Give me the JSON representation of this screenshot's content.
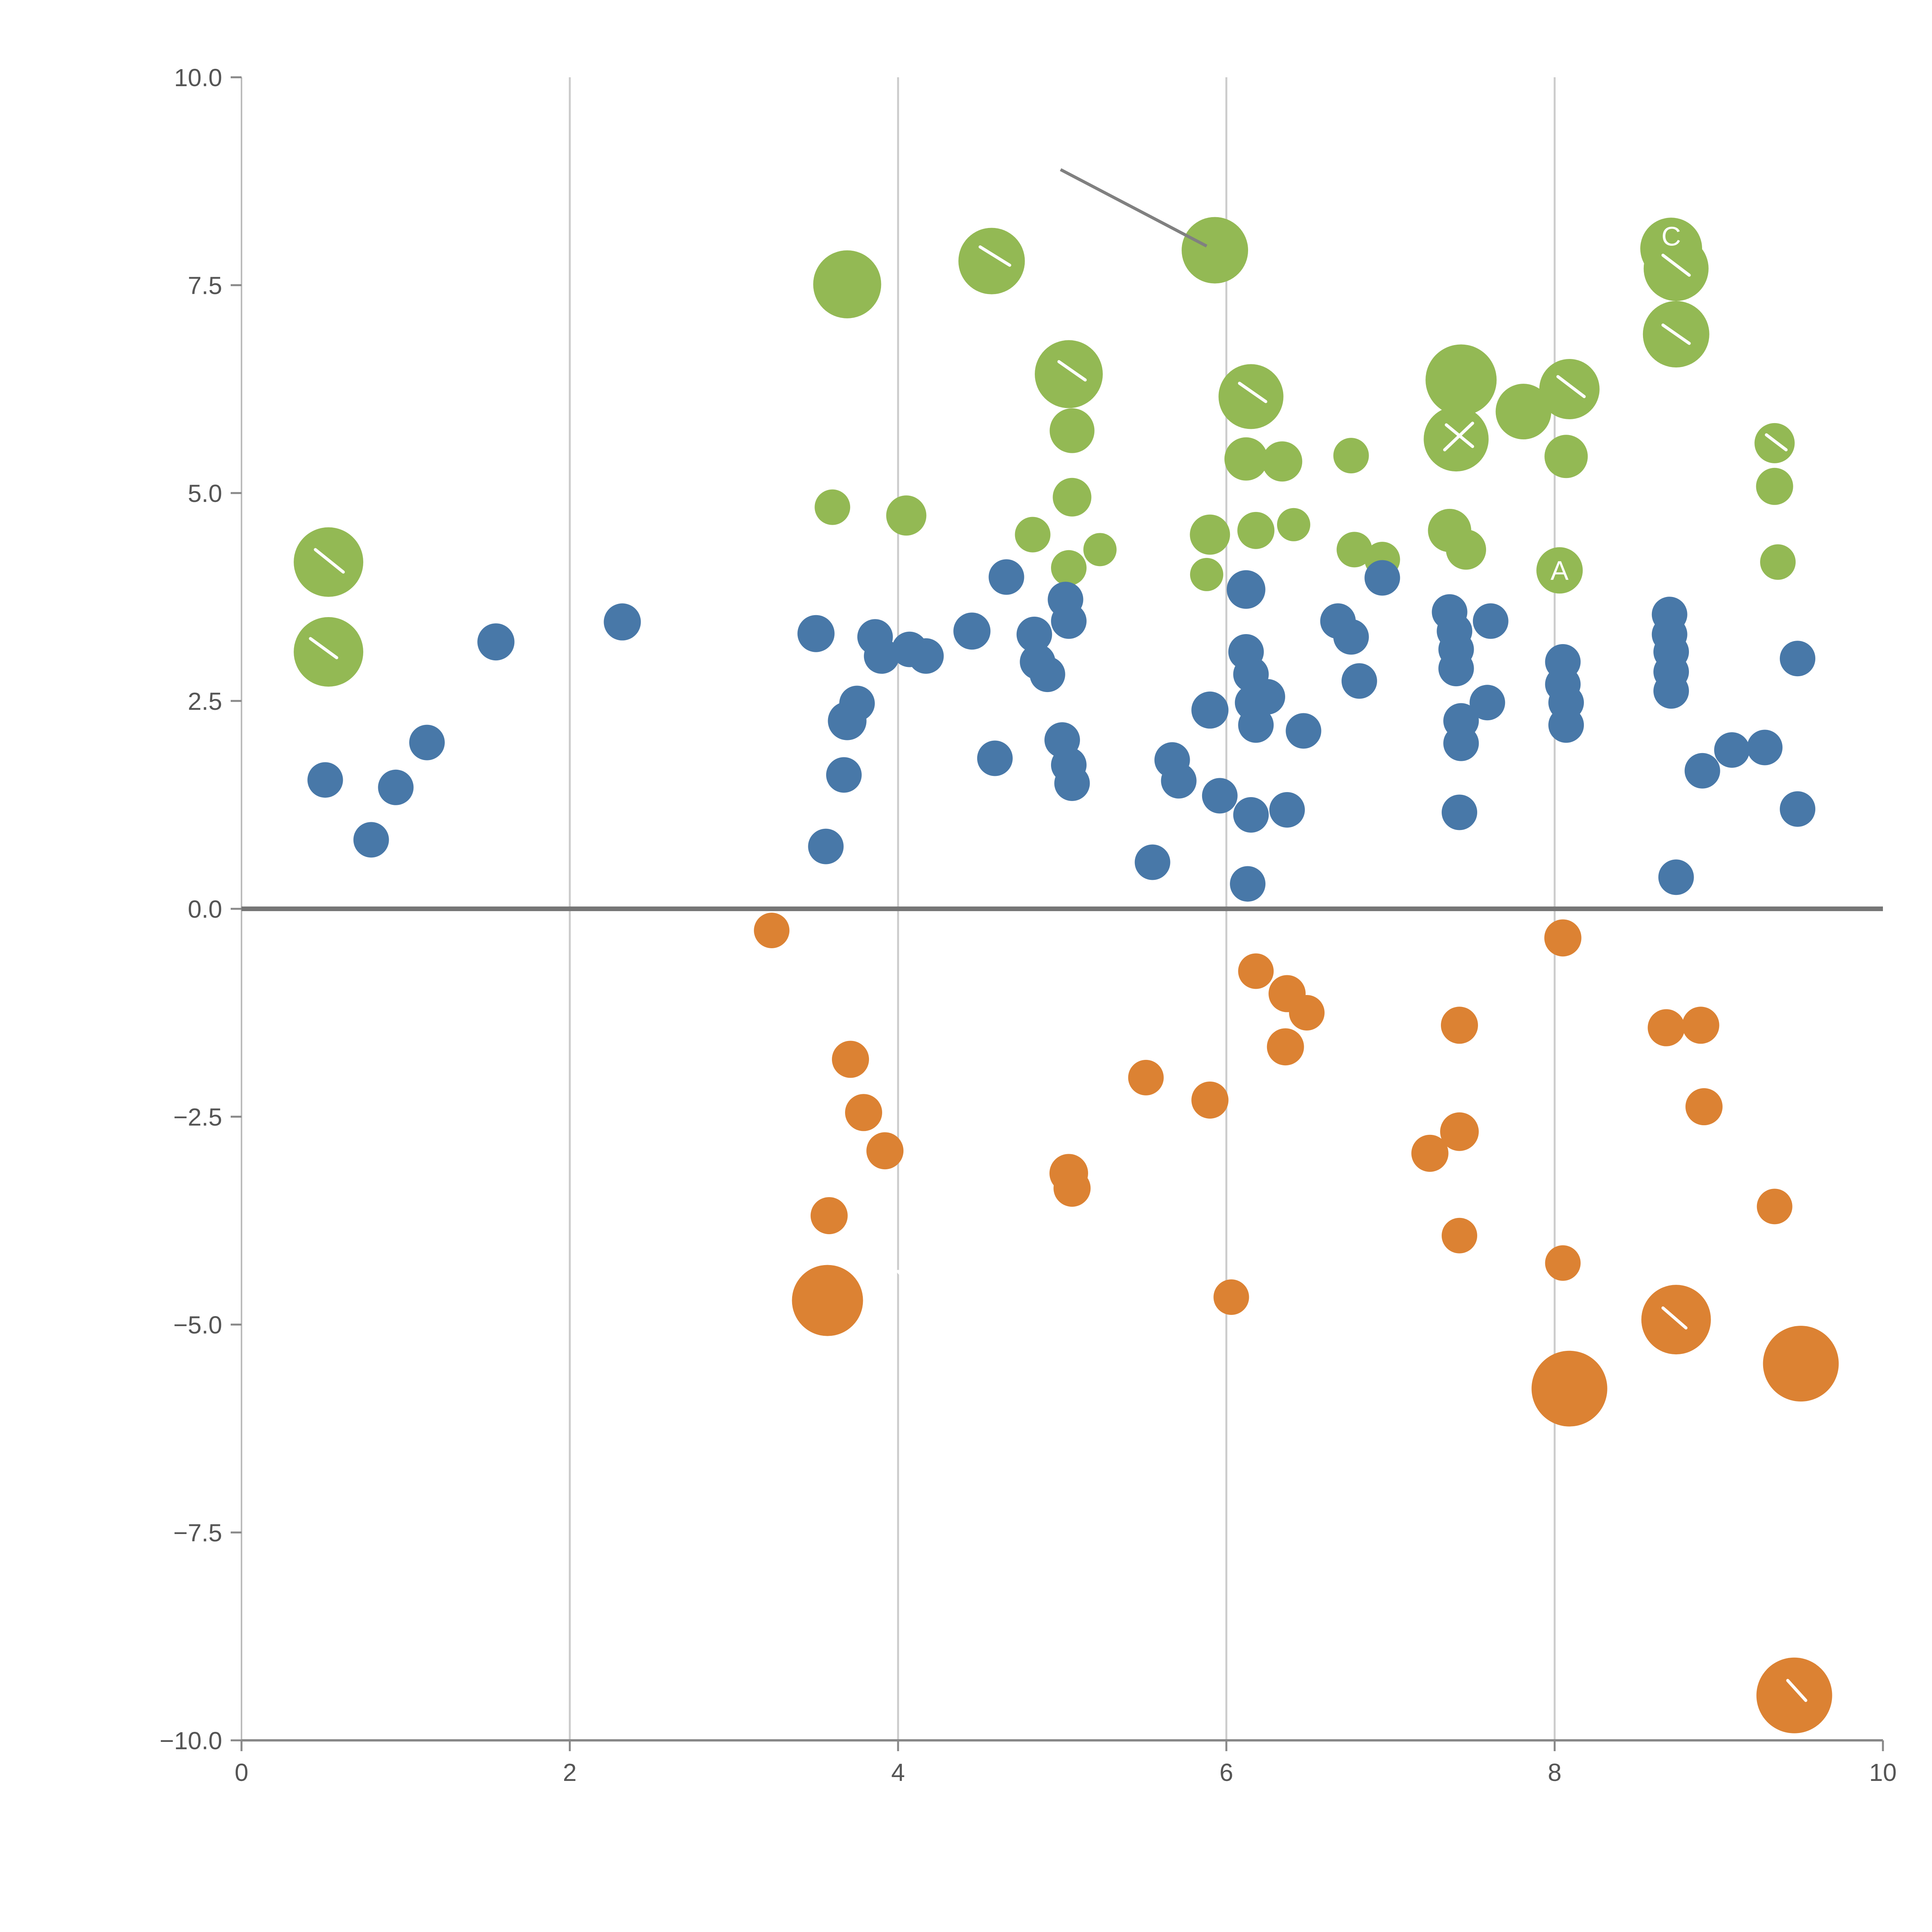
{
  "chart_data": {
    "type": "scatter",
    "title": "",
    "xlabel": "",
    "ylabel": "",
    "xlim": [
      0,
      10
    ],
    "ylim": [
      -10,
      10
    ],
    "grid": {
      "vertical_x": [
        2,
        4,
        6,
        8
      ],
      "color": "#cccccc",
      "horizontal": false
    },
    "axis": {
      "spine_color": "#888888",
      "tick_color": "#888888",
      "tick_label_color": "#555555"
    },
    "zero_line": {
      "y": 0,
      "color": "#767676",
      "width": 12
    },
    "x_ticks": [
      {
        "value": 0,
        "label": "0"
      },
      {
        "value": 2,
        "label": "2"
      },
      {
        "value": 4,
        "label": "4"
      },
      {
        "value": 6,
        "label": "6"
      },
      {
        "value": 8,
        "label": "8"
      },
      {
        "value": 10,
        "label": "10"
      }
    ],
    "y_ticks": [
      {
        "value": 10,
        "label": "10.0"
      },
      {
        "value": 7.5,
        "label": "7.5"
      },
      {
        "value": 5,
        "label": "5.0"
      },
      {
        "value": 2.5,
        "label": "2.5"
      },
      {
        "value": 0,
        "label": "0.0"
      },
      {
        "value": -2.5,
        "label": "−2.5"
      },
      {
        "value": -5,
        "label": "−5.0"
      },
      {
        "value": -7.5,
        "label": "−7.5"
      },
      {
        "value": -10,
        "label": "−10.0"
      }
    ],
    "series": [
      {
        "name": "green",
        "color": "#93b954",
        "points": [
          [
            0.53,
            4.17,
            90
          ],
          [
            0.53,
            3.09,
            90
          ],
          [
            3.69,
            7.51,
            88
          ],
          [
            4.57,
            7.79,
            86
          ],
          [
            5.93,
            7.92,
            86
          ],
          [
            8.71,
            7.94,
            80
          ],
          [
            8.74,
            7.7,
            84
          ],
          [
            8.74,
            6.91,
            86
          ],
          [
            5.04,
            6.43,
            88
          ],
          [
            5.06,
            5.75,
            58
          ],
          [
            6.15,
            6.16,
            84
          ],
          [
            7.43,
            6.36,
            92
          ],
          [
            7.4,
            5.65,
            84
          ],
          [
            7.81,
            5.98,
            72
          ],
          [
            8.09,
            6.25,
            78
          ],
          [
            8.07,
            5.44,
            56
          ],
          [
            6.12,
            5.41,
            56
          ],
          [
            6.34,
            5.38,
            52
          ],
          [
            6.76,
            5.45,
            46
          ],
          [
            5.06,
            4.95,
            50
          ],
          [
            3.6,
            4.83,
            46
          ],
          [
            4.05,
            4.73,
            52
          ],
          [
            4.82,
            4.5,
            46
          ],
          [
            5.04,
            4.1,
            46
          ],
          [
            5.23,
            4.32,
            43
          ],
          [
            5.9,
            4.5,
            52
          ],
          [
            6.18,
            4.55,
            48
          ],
          [
            6.41,
            4.62,
            43
          ],
          [
            5.88,
            4.02,
            43
          ],
          [
            6.78,
            4.32,
            46
          ],
          [
            6.95,
            4.2,
            46
          ],
          [
            7.36,
            4.55,
            56
          ],
          [
            7.46,
            4.32,
            52
          ],
          [
            8.03,
            4.07,
            60
          ],
          [
            9.34,
            5.6,
            52
          ],
          [
            9.34,
            5.08,
            48
          ],
          [
            9.36,
            4.17,
            46
          ]
        ]
      },
      {
        "name": "blue",
        "color": "#4878a8",
        "points": [
          [
            0.51,
            1.55,
            46
          ],
          [
            0.79,
            0.83,
            46
          ],
          [
            0.94,
            1.46,
            46
          ],
          [
            1.13,
            2.0,
            46
          ],
          [
            1.55,
            3.21,
            48
          ],
          [
            2.32,
            3.45,
            48
          ],
          [
            3.5,
            3.31,
            48
          ],
          [
            3.56,
            0.75,
            46
          ],
          [
            3.69,
            2.26,
            50
          ],
          [
            3.67,
            1.61,
            46
          ],
          [
            3.75,
            2.47,
            46
          ],
          [
            3.86,
            3.27,
            46
          ],
          [
            3.9,
            3.04,
            46
          ],
          [
            4.07,
            3.12,
            46
          ],
          [
            4.17,
            3.04,
            46
          ],
          [
            4.45,
            3.34,
            48
          ],
          [
            4.59,
            1.81,
            46
          ],
          [
            4.66,
            3.99,
            46
          ],
          [
            4.83,
            3.3,
            46
          ],
          [
            4.85,
            2.97,
            46
          ],
          [
            4.91,
            2.82,
            46
          ],
          [
            5.02,
            3.72,
            46
          ],
          [
            5.04,
            3.46,
            46
          ],
          [
            5.0,
            2.03,
            46
          ],
          [
            5.04,
            1.73,
            46
          ],
          [
            5.06,
            1.51,
            46
          ],
          [
            5.55,
            0.56,
            46
          ],
          [
            5.67,
            1.79,
            46
          ],
          [
            5.71,
            1.54,
            46
          ],
          [
            5.9,
            2.39,
            48
          ],
          [
            5.96,
            1.36,
            46
          ],
          [
            6.12,
            3.84,
            50
          ],
          [
            6.12,
            3.09,
            46
          ],
          [
            6.15,
            2.82,
            46
          ],
          [
            6.16,
            2.48,
            46
          ],
          [
            6.18,
            2.21,
            46
          ],
          [
            6.15,
            1.13,
            46
          ],
          [
            6.13,
            0.3,
            46
          ],
          [
            6.25,
            2.55,
            46
          ],
          [
            6.37,
            1.19,
            46
          ],
          [
            6.47,
            2.14,
            46
          ],
          [
            6.68,
            3.46,
            46
          ],
          [
            6.76,
            3.27,
            46
          ],
          [
            6.81,
            2.74,
            46
          ],
          [
            6.95,
            3.98,
            46
          ],
          [
            7.36,
            3.57,
            46
          ],
          [
            7.39,
            3.34,
            46
          ],
          [
            7.4,
            3.12,
            46
          ],
          [
            7.4,
            2.89,
            46
          ],
          [
            7.43,
            2.26,
            46
          ],
          [
            7.43,
            1.99,
            46
          ],
          [
            7.42,
            1.16,
            46
          ],
          [
            7.61,
            3.46,
            46
          ],
          [
            7.59,
            2.48,
            46
          ],
          [
            8.05,
            2.97,
            46
          ],
          [
            8.05,
            2.7,
            46
          ],
          [
            8.07,
            2.48,
            46
          ],
          [
            8.07,
            2.21,
            46
          ],
          [
            8.7,
            3.54,
            46
          ],
          [
            8.7,
            3.3,
            46
          ],
          [
            8.71,
            3.09,
            46
          ],
          [
            8.71,
            2.85,
            46
          ],
          [
            8.71,
            2.62,
            46
          ],
          [
            8.74,
            0.38,
            46
          ],
          [
            8.9,
            1.66,
            46
          ],
          [
            9.08,
            1.91,
            46
          ],
          [
            9.28,
            1.94,
            46
          ],
          [
            9.48,
            3.01,
            46
          ],
          [
            9.48,
            1.2,
            46
          ]
        ]
      },
      {
        "name": "orange",
        "color": "#dc8233",
        "points": [
          [
            3.23,
            -0.26,
            46
          ],
          [
            3.71,
            -1.81,
            48
          ],
          [
            3.79,
            -2.45,
            48
          ],
          [
            3.92,
            -2.91,
            48
          ],
          [
            3.58,
            -3.69,
            48
          ],
          [
            3.57,
            -4.71,
            92
          ],
          [
            5.04,
            -3.18,
            50
          ],
          [
            5.06,
            -3.36,
            48
          ],
          [
            5.51,
            -2.03,
            46
          ],
          [
            5.9,
            -2.3,
            48
          ],
          [
            6.18,
            -0.75,
            46
          ],
          [
            6.37,
            -1.02,
            48
          ],
          [
            6.49,
            -1.25,
            46
          ],
          [
            6.36,
            -1.66,
            48
          ],
          [
            6.03,
            -4.67,
            46
          ],
          [
            7.24,
            -2.94,
            48
          ],
          [
            7.42,
            -2.68,
            50
          ],
          [
            7.42,
            -1.4,
            48
          ],
          [
            7.42,
            -3.93,
            46
          ],
          [
            8.05,
            -0.35,
            48
          ],
          [
            8.05,
            -4.26,
            46
          ],
          [
            8.09,
            -5.77,
            98
          ],
          [
            8.68,
            -1.43,
            48
          ],
          [
            8.89,
            -1.4,
            48
          ],
          [
            8.91,
            -2.38,
            48
          ],
          [
            8.74,
            -4.94,
            90
          ],
          [
            9.34,
            -3.58,
            46
          ],
          [
            9.5,
            -5.47,
            98
          ],
          [
            9.46,
            -9.46,
            98
          ]
        ]
      }
    ],
    "annotations": {
      "labels": [
        {
          "text": "C",
          "x": 8.71,
          "y": 8.09,
          "color": "#ffffff",
          "size": 70
        },
        {
          "text": "A",
          "x": 8.03,
          "y": 4.07,
          "color": "#ffffff",
          "size": 70
        }
      ],
      "gray_lines": [
        {
          "x1": 4.99,
          "y1": 8.89,
          "x2": 5.88,
          "y2": 7.97,
          "color": "#808080",
          "width": 8
        }
      ],
      "white_lines": [
        {
          "x1": 0.45,
          "y1": 4.32,
          "x2": 0.62,
          "y2": 4.05
        },
        {
          "x1": 0.42,
          "y1": 3.25,
          "x2": 0.58,
          "y2": 3.02
        },
        {
          "x1": 4.5,
          "y1": 7.96,
          "x2": 4.68,
          "y2": 7.74
        },
        {
          "x1": 4.98,
          "y1": 6.58,
          "x2": 5.14,
          "y2": 6.36
        },
        {
          "x1": 6.08,
          "y1": 6.32,
          "x2": 6.24,
          "y2": 6.1
        },
        {
          "x1": 7.34,
          "y1": 5.82,
          "x2": 7.5,
          "y2": 5.56
        },
        {
          "x1": 7.5,
          "y1": 5.84,
          "x2": 7.33,
          "y2": 5.52
        },
        {
          "x1": 8.02,
          "y1": 6.4,
          "x2": 8.18,
          "y2": 6.16
        },
        {
          "x1": 8.66,
          "y1": 7.86,
          "x2": 8.82,
          "y2": 7.62
        },
        {
          "x1": 8.66,
          "y1": 7.02,
          "x2": 8.82,
          "y2": 6.8
        },
        {
          "x1": 9.29,
          "y1": 5.7,
          "x2": 9.41,
          "y2": 5.52
        },
        {
          "x1": 4.0,
          "y1": -4.36,
          "x2": 4.12,
          "y2": -4.62
        },
        {
          "x1": 8.66,
          "y1": -4.8,
          "x2": 8.8,
          "y2": -5.04
        },
        {
          "x1": 9.42,
          "y1": -9.28,
          "x2": 9.53,
          "y2": -9.52
        }
      ],
      "white_line_color": "#ffffff",
      "white_line_width": 8
    }
  }
}
